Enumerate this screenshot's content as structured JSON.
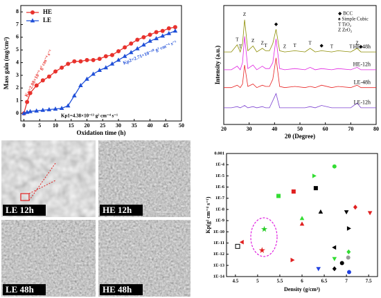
{
  "chart_data": [
    {
      "type": "line",
      "xlabel": "Oxidation time (h)",
      "ylabel": "Mass gain (mg/cm²)",
      "x": [
        0,
        1,
        2,
        4,
        6,
        8,
        10,
        12,
        14,
        16,
        18,
        20,
        22,
        24,
        26,
        28,
        30,
        32,
        34,
        36,
        38,
        40,
        42,
        44,
        46,
        48
      ],
      "xlim": [
        -1,
        50
      ],
      "xticks": [
        0,
        5,
        10,
        15,
        20,
        25,
        30,
        35,
        40,
        45,
        50
      ],
      "ylim": [
        -0.6,
        8.5
      ],
      "yticks": [
        0,
        1,
        2,
        3,
        4,
        5,
        6,
        7,
        8
      ],
      "legend": "upper left",
      "series": [
        {
          "name": "HE",
          "color": "#e8322d",
          "marker": "circle",
          "values": [
            0,
            0.9,
            1.6,
            2.2,
            2.6,
            2.9,
            3.3,
            3.6,
            3.9,
            4.1,
            4.1,
            4.2,
            4.2,
            4.3,
            4.5,
            4.6,
            4.9,
            5.2,
            5.5,
            5.8,
            6.0,
            6.2,
            6.4,
            6.5,
            6.7,
            6.8
          ]
        },
        {
          "name": "LE",
          "color": "#1f4fd8",
          "marker": "triangle",
          "values": [
            0,
            0.1,
            0.15,
            0.2,
            0.25,
            0.3,
            0.35,
            0.4,
            0.6,
            1.4,
            2.2,
            2.7,
            3.1,
            3.4,
            3.6,
            3.9,
            4.2,
            4.5,
            4.8,
            5.1,
            5.4,
            5.7,
            5.9,
            6.1,
            6.3,
            6.5
          ]
        }
      ],
      "annotations": [
        "Kp=2.08×10⁻⁹ g² cm⁻⁴ s⁻¹",
        "Kp2=2.71×10⁻¹⁰ g² cm⁻⁴ s⁻¹",
        "Kp1=4.38×10⁻¹³ g² cm⁻⁴ s⁻¹"
      ]
    },
    {
      "type": "line",
      "xlabel": "2θ (Degree)",
      "ylabel": "Intensity (a.u.)",
      "x": [
        20,
        23,
        25.3,
        26.5,
        27.4,
        28.2,
        29.5,
        31.5,
        33,
        35.2,
        36.5,
        38,
        39.3,
        40.6,
        42,
        44,
        48,
        52,
        54,
        56,
        58.5,
        62.5,
        65,
        70,
        72.5,
        74,
        77,
        80
      ],
      "xlim": [
        20,
        80
      ],
      "xticks": [
        20,
        30,
        40,
        50,
        60,
        70,
        80
      ],
      "ylim": [
        0,
        100
      ],
      "series": [
        {
          "name": "HE-48h",
          "color": "#8c8c00",
          "values": [
            61,
            61,
            67,
            61,
            68,
            88,
            62,
            66,
            61,
            64,
            62,
            62,
            68,
            80,
            62,
            61,
            62,
            61,
            64,
            61,
            62,
            61,
            62,
            61,
            64,
            61,
            61,
            61
          ]
        },
        {
          "name": "HE-12h",
          "color": "#e020e0",
          "values": [
            46,
            46,
            49,
            46,
            52,
            74,
            47,
            50,
            46,
            49,
            47,
            47,
            52,
            72,
            47,
            46,
            47,
            46,
            48,
            46,
            47,
            46,
            47,
            46,
            48,
            46,
            46,
            46
          ]
        },
        {
          "name": "LE-48h",
          "color": "#e82020",
          "values": [
            31,
            31,
            33,
            31,
            34,
            50,
            32,
            34,
            31,
            33,
            32,
            32,
            38,
            56,
            32,
            31,
            32,
            31,
            32,
            31,
            33,
            31,
            32,
            31,
            33,
            31,
            31,
            31
          ]
        },
        {
          "name": "LE-12h",
          "color": "#7a3fd0",
          "values": [
            14,
            14,
            15,
            14,
            15,
            16,
            14,
            15,
            14,
            15,
            14,
            14,
            20,
            26,
            14,
            14,
            14,
            14,
            15,
            14,
            16,
            14,
            14,
            14,
            18,
            14,
            14,
            14
          ]
        }
      ],
      "legend_entries": [
        "◆  BCC",
        "♠  Simple Cubic",
        "T   TiO₂",
        "Z   ZrO₂"
      ],
      "peak_labels": [
        {
          "x": 25.3,
          "label": "T"
        },
        {
          "x": 26.5,
          "label": "T"
        },
        {
          "x": 28.2,
          "label": "Z"
        },
        {
          "x": 31.5,
          "label": "Z"
        },
        {
          "x": 35.2,
          "label": "Z"
        },
        {
          "x": 36.5,
          "label": "T"
        },
        {
          "x": 40.6,
          "label": "◆"
        },
        {
          "x": 44,
          "label": "Z"
        },
        {
          "x": 48,
          "label": "T"
        },
        {
          "x": 54,
          "label": "T"
        },
        {
          "x": 58.5,
          "label": "◆"
        },
        {
          "x": 62.5,
          "label": "T"
        },
        {
          "x": 70,
          "label": "T"
        },
        {
          "x": 72.5,
          "label": "Z"
        },
        {
          "x": 74,
          "label": "◆"
        }
      ]
    },
    {
      "type": "scatter",
      "xlabel": "Density (g/cm³)",
      "ylabel": "Kp(g² cm⁻⁴ s⁻¹)",
      "xlim": [
        4.3,
        7.7
      ],
      "xticks": [
        4.5,
        5,
        5.5,
        6,
        6.5,
        7,
        7.5
      ],
      "ylim": [
        1e-14,
        0.001
      ],
      "log_y": true,
      "yticks": [
        0.001,
        {
          "value": 0.0001,
          "label": "1E-4"
        },
        {
          "value": 1e-05,
          "label": "1E-5"
        },
        {
          "value": 1e-06,
          "label": "1E-6"
        },
        {
          "value": 1e-07,
          "label": "1E-7"
        },
        {
          "value": 1e-08,
          "label": "1E-8"
        },
        {
          "value": 1e-09,
          "label": "1E-9"
        },
        {
          "value": 1e-10,
          "label": "1E-10"
        },
        {
          "value": 1e-11,
          "label": "1E-11"
        },
        {
          "value": 1e-12,
          "label": "1E-12"
        },
        {
          "value": 1e-13,
          "label": "1E-13"
        },
        {
          "value": 1e-14,
          "label": "1E-14"
        }
      ],
      "points": [
        {
          "x": 4.65,
          "y": 1.2e-11,
          "color": "#e02020",
          "marker": "tri-left"
        },
        {
          "x": 4.55,
          "y": 5e-12,
          "color": "#000000",
          "marker": "square-open"
        },
        {
          "x": 5.15,
          "y": 1.7e-10,
          "color": "#22cc22",
          "marker": "star"
        },
        {
          "x": 5.1,
          "y": 2.2e-12,
          "color": "#e02020",
          "marker": "star"
        },
        {
          "x": 6.73,
          "y": 7e-05,
          "color": "#33dd33",
          "marker": "circle"
        },
        {
          "x": 6.27,
          "y": 1e-05,
          "color": "#33dd33",
          "marker": "tri-right"
        },
        {
          "x": 5.81,
          "y": 4e-07,
          "color": "#e02020",
          "marker": "square"
        },
        {
          "x": 5.47,
          "y": 1.6e-07,
          "color": "#33dd33",
          "marker": "square"
        },
        {
          "x": 6.31,
          "y": 8e-07,
          "color": "#000000",
          "marker": "square"
        },
        {
          "x": 6.42,
          "y": 6e-09,
          "color": "#000000",
          "marker": "tri-up"
        },
        {
          "x": 6.0,
          "y": 1.6e-09,
          "color": "#33dd33",
          "marker": "tri-up"
        },
        {
          "x": 6.0,
          "y": 5e-10,
          "color": "#e02020",
          "marker": "tri-up"
        },
        {
          "x": 7.0,
          "y": 6e-09,
          "color": "#000000",
          "marker": "tri-down"
        },
        {
          "x": 7.2,
          "y": 1.6e-08,
          "color": "#e02020",
          "marker": "diamond"
        },
        {
          "x": 7.53,
          "y": 5e-09,
          "color": "#e02020",
          "marker": "tri-down"
        },
        {
          "x": 7.05,
          "y": 2e-10,
          "color": "#000000",
          "marker": "tri-right"
        },
        {
          "x": 5.78,
          "y": 3e-13,
          "color": "#e02020",
          "marker": "tri-right"
        },
        {
          "x": 6.73,
          "y": 4e-12,
          "color": "#000000",
          "marker": "tri-left"
        },
        {
          "x": 6.73,
          "y": 4e-13,
          "color": "#33dd33",
          "marker": "tri-down"
        },
        {
          "x": 6.37,
          "y": 5e-14,
          "color": "#2040e0",
          "marker": "tri-down"
        },
        {
          "x": 6.73,
          "y": 5e-14,
          "color": "#000000",
          "marker": "diamond"
        },
        {
          "x": 6.9,
          "y": 1.6e-13,
          "color": "#000000",
          "marker": "circle"
        },
        {
          "x": 7.05,
          "y": 1.6e-12,
          "color": "#33dd33",
          "marker": "diamond"
        },
        {
          "x": 7.04,
          "y": 5e-13,
          "color": "#999999",
          "marker": "circle"
        },
        {
          "x": 7.06,
          "y": 2.5e-14,
          "color": "#2040e0",
          "marker": "circle"
        }
      ]
    }
  ],
  "images": {
    "panels": [
      {
        "label": "LE 12h"
      },
      {
        "label": "HE 12h"
      },
      {
        "label": "LE 48h"
      },
      {
        "label": "HE 48h"
      }
    ]
  }
}
